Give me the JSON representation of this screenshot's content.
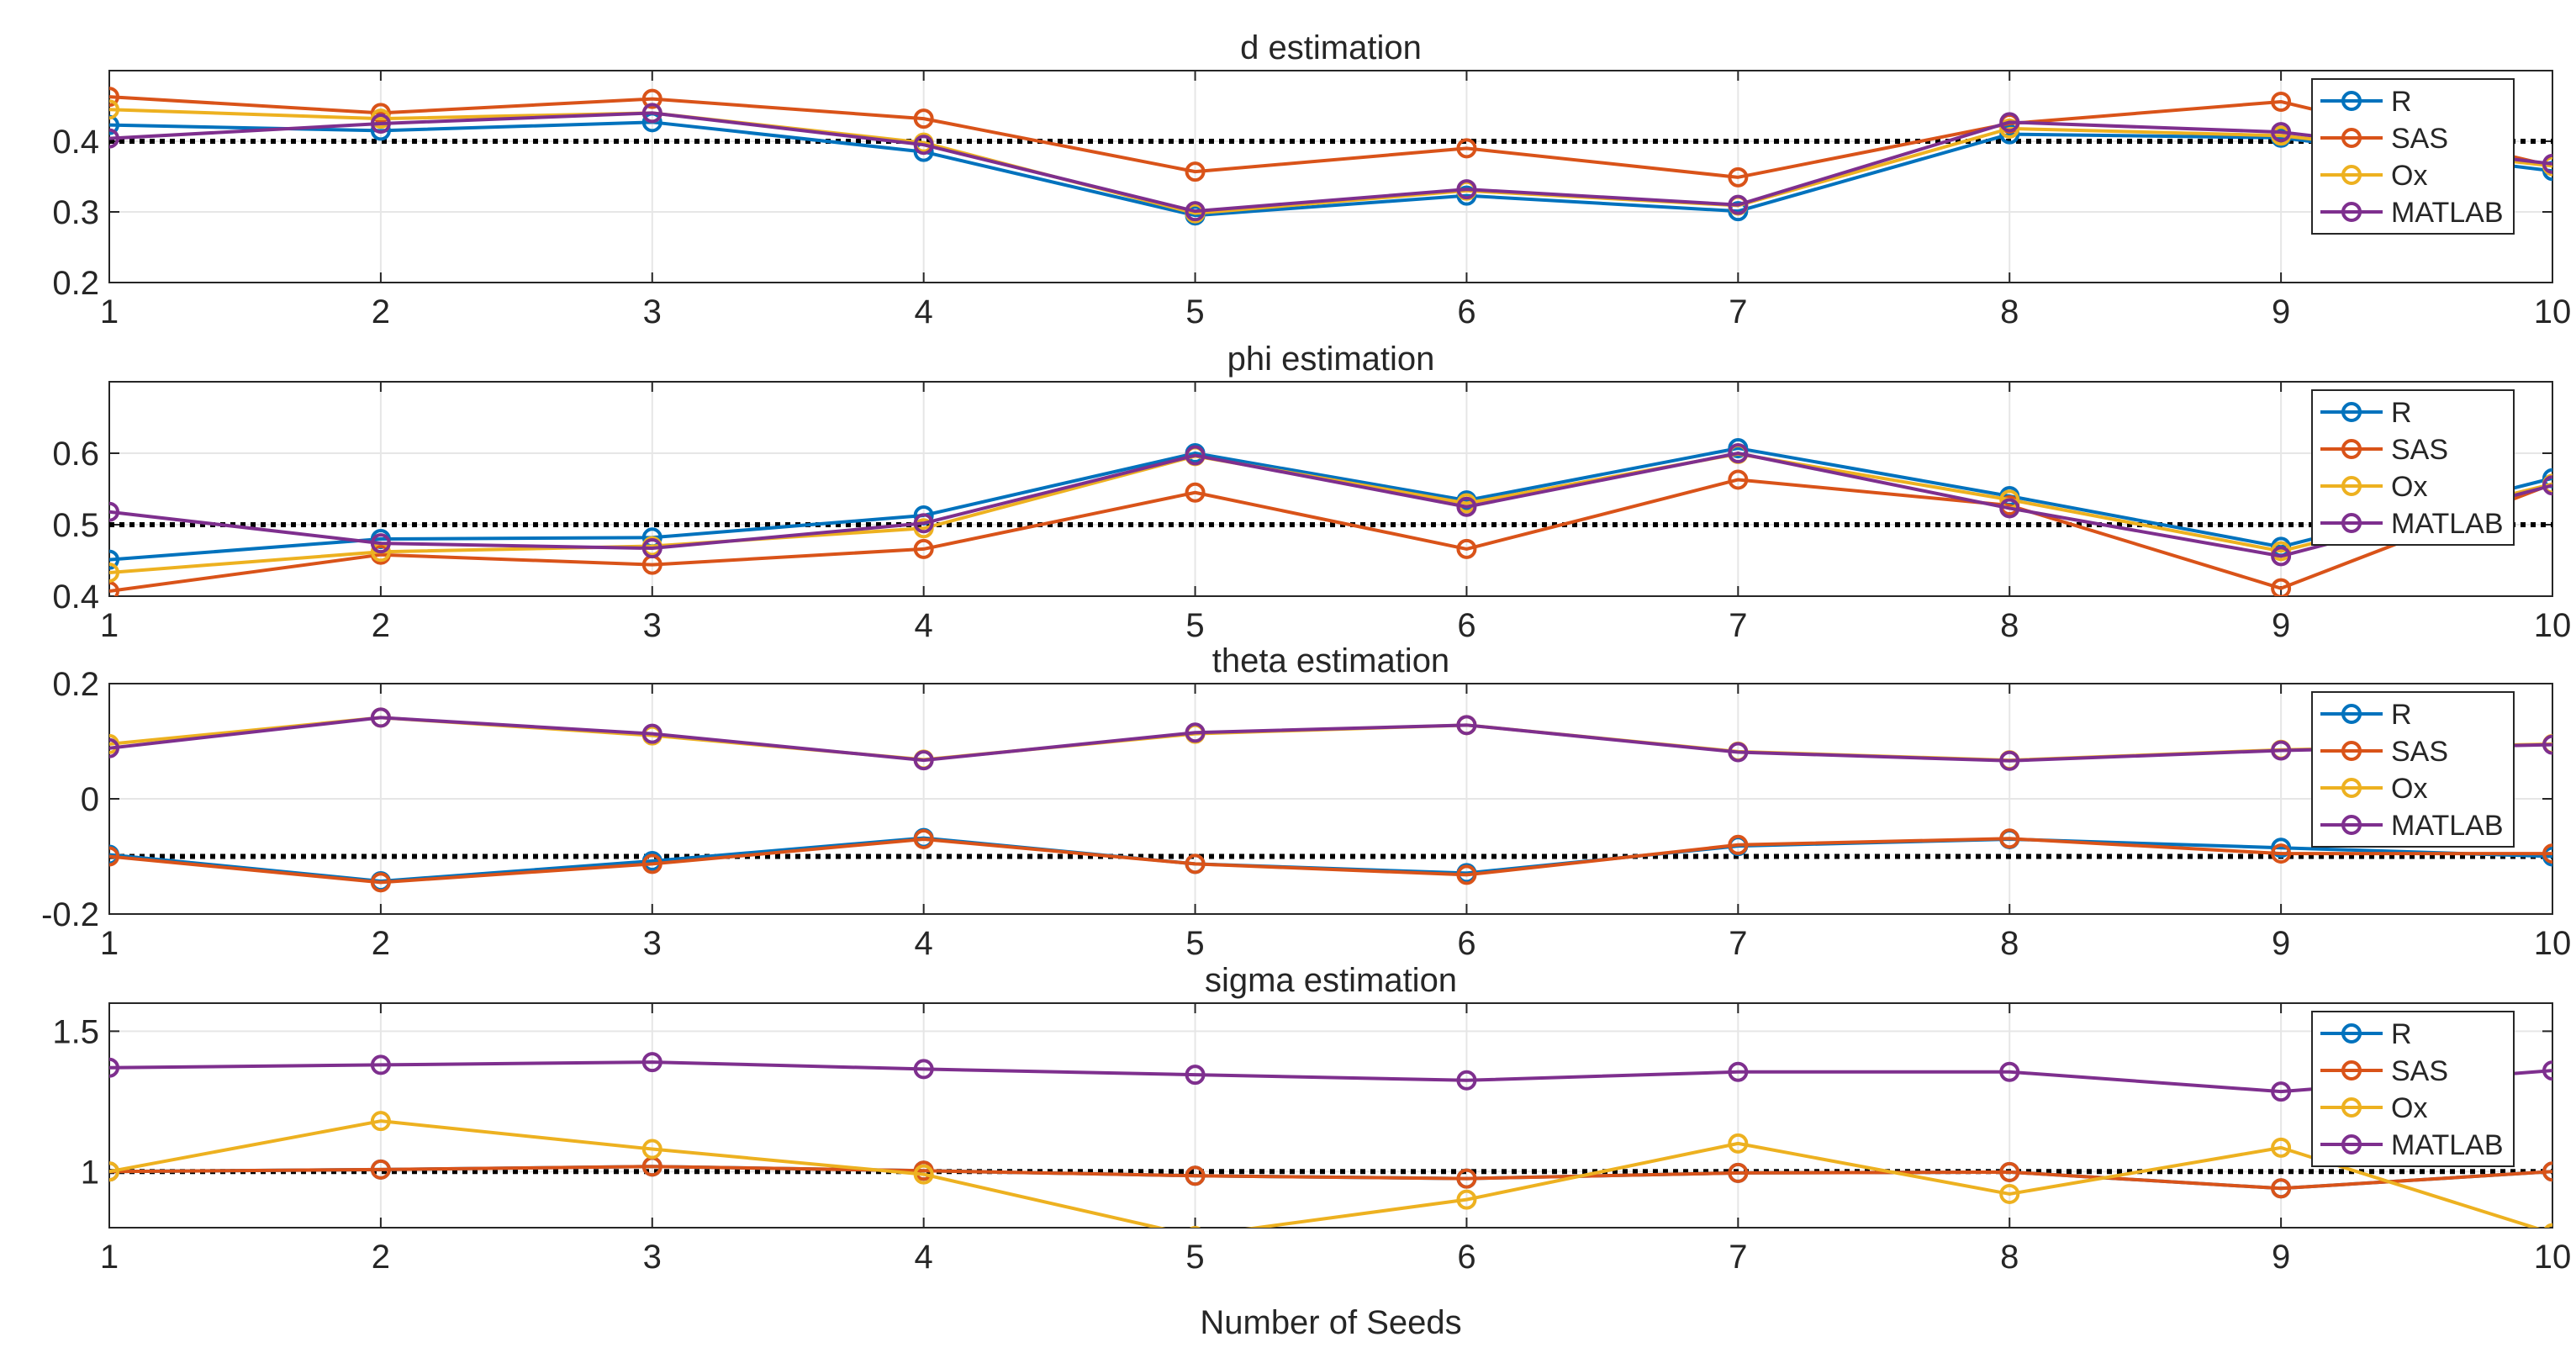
{
  "chart_data": [
    {
      "type": "line",
      "title": "d estimation",
      "x": [
        1,
        2,
        3,
        4,
        5,
        6,
        7,
        8,
        9,
        10
      ],
      "ylim": [
        0.2,
        0.5
      ],
      "yticks": [
        0.2,
        0.3,
        0.4
      ],
      "yticklabels": [
        "0.2",
        "0.3",
        "0.4"
      ],
      "xticklabels": [
        "1",
        "2",
        "3",
        "4",
        "5",
        "6",
        "7",
        "8",
        "9",
        "10"
      ],
      "reference_line": 0.4,
      "grid": true,
      "legend": "right",
      "series": [
        {
          "name": "R",
          "values": [
            0.423,
            0.415,
            0.427,
            0.385,
            0.295,
            0.323,
            0.301,
            0.41,
            0.405,
            0.358
          ]
        },
        {
          "name": "SAS",
          "values": [
            0.463,
            0.44,
            0.46,
            0.432,
            0.357,
            0.39,
            0.349,
            0.425,
            0.456,
            0.365
          ]
        },
        {
          "name": "Ox",
          "values": [
            0.445,
            0.432,
            0.44,
            0.398,
            0.298,
            0.33,
            0.309,
            0.418,
            0.408,
            0.365
          ]
        },
        {
          "name": "MATLAB",
          "values": [
            0.404,
            0.425,
            0.44,
            0.395,
            0.301,
            0.332,
            0.31,
            0.427,
            0.413,
            0.368
          ]
        }
      ]
    },
    {
      "type": "line",
      "title": "phi estimation",
      "x": [
        1,
        2,
        3,
        4,
        5,
        6,
        7,
        8,
        9,
        10
      ],
      "ylim": [
        0.4,
        0.7
      ],
      "yticks": [
        0.4,
        0.5,
        0.6
      ],
      "yticklabels": [
        "0.4",
        "0.5",
        "0.6"
      ],
      "xticklabels": [
        "1",
        "2",
        "3",
        "4",
        "5",
        "6",
        "7",
        "8",
        "9",
        "10"
      ],
      "reference_line": 0.5,
      "grid": true,
      "legend": "right",
      "series": [
        {
          "name": "R",
          "values": [
            0.451,
            0.48,
            0.482,
            0.513,
            0.6,
            0.534,
            0.607,
            0.54,
            0.469,
            0.565
          ]
        },
        {
          "name": "SAS",
          "values": [
            0.407,
            0.458,
            0.444,
            0.466,
            0.545,
            0.466,
            0.563,
            0.527,
            0.411,
            0.557
          ]
        },
        {
          "name": "Ox",
          "values": [
            0.433,
            0.462,
            0.47,
            0.495,
            0.596,
            0.53,
            0.599,
            0.535,
            0.463,
            0.557
          ]
        },
        {
          "name": "MATLAB",
          "values": [
            0.518,
            0.474,
            0.467,
            0.502,
            0.597,
            0.525,
            0.6,
            0.523,
            0.456,
            0.555
          ]
        }
      ]
    },
    {
      "type": "line",
      "title": "theta estimation",
      "x": [
        1,
        2,
        3,
        4,
        5,
        6,
        7,
        8,
        9,
        10
      ],
      "ylim": [
        -0.2,
        0.2
      ],
      "yticks": [
        -0.2,
        0,
        0.2
      ],
      "yticklabels": [
        "-0.2",
        "0",
        "0.2"
      ],
      "xticklabels": [
        "1",
        "2",
        "3",
        "4",
        "5",
        "6",
        "7",
        "8",
        "9",
        "10"
      ],
      "reference_line": -0.1,
      "grid": true,
      "legend": "right",
      "series": [
        {
          "name": "R",
          "values": [
            -0.097,
            -0.143,
            -0.108,
            -0.068,
            -0.113,
            -0.129,
            -0.082,
            -0.07,
            -0.085,
            -0.1
          ]
        },
        {
          "name": "SAS",
          "values": [
            -0.1,
            -0.145,
            -0.113,
            -0.07,
            -0.113,
            -0.132,
            -0.08,
            -0.069,
            -0.095,
            -0.095
          ]
        },
        {
          "name": "Ox",
          "values": [
            0.095,
            0.141,
            0.11,
            0.068,
            0.113,
            0.128,
            0.082,
            0.067,
            0.085,
            0.095
          ]
        },
        {
          "name": "MATLAB",
          "values": [
            0.088,
            0.141,
            0.113,
            0.067,
            0.115,
            0.128,
            0.081,
            0.066,
            0.084,
            0.094
          ]
        }
      ]
    },
    {
      "type": "line",
      "title": "sigma estimation",
      "x": [
        1,
        2,
        3,
        4,
        5,
        6,
        7,
        8,
        9,
        10
      ],
      "ylim": [
        0.8,
        1.6
      ],
      "yticks": [
        1,
        1.5
      ],
      "yticklabels": [
        "1",
        "1.5"
      ],
      "xticklabels": [
        "1",
        "2",
        "3",
        "4",
        "5",
        "6",
        "7",
        "8",
        "9",
        "10"
      ],
      "xlabel": "Number of Seeds",
      "reference_line": 1,
      "grid": true,
      "legend": "right",
      "series": [
        {
          "name": "R",
          "values": [
            1.0,
            1.007,
            1.018,
            1.003,
            0.985,
            0.975,
            0.995,
            0.998,
            0.94,
            1.0
          ]
        },
        {
          "name": "SAS",
          "values": [
            1.0,
            1.007,
            1.018,
            1.003,
            0.985,
            0.975,
            0.995,
            0.998,
            0.94,
            1.0
          ]
        },
        {
          "name": "Ox",
          "values": [
            1.0,
            1.18,
            1.08,
            0.99,
            0.77,
            0.9,
            1.1,
            0.92,
            1.085,
            0.78
          ]
        },
        {
          "name": "MATLAB",
          "values": [
            1.37,
            1.38,
            1.39,
            1.365,
            1.345,
            1.325,
            1.355,
            1.355,
            1.285,
            1.36
          ]
        }
      ]
    }
  ],
  "colors": {
    "R": "#0072BD",
    "SAS": "#D95319",
    "Ox": "#EDB120",
    "MATLAB": "#7E2F8E"
  }
}
